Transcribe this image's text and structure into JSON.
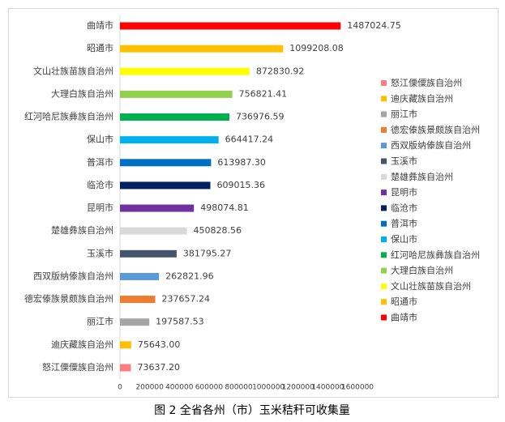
{
  "chart_data": {
    "type": "bar",
    "orientation": "horizontal",
    "caption": "图 2 全省各州（市）玉米秸秆可收集量",
    "categories": [
      "曲靖市",
      "昭通市",
      "文山壮族苗族自治州",
      "大理白族自治州",
      "红河哈尼族彝族自治州",
      "保山市",
      "普洱市",
      "临沧市",
      "昆明市",
      "楚雄彝族自治州",
      "玉溪市",
      "西双版纳傣族自治州",
      "德宏傣族景颇族自治州",
      "丽江市",
      "迪庆藏族自治州",
      "怒江傈僳族自治州"
    ],
    "values": [
      1487024.75,
      1099208.08,
      872830.92,
      756821.41,
      736976.59,
      664417.24,
      613987.3,
      609015.36,
      498074.81,
      450828.56,
      381795.27,
      262821.96,
      237657.24,
      197587.53,
      75643,
      73637.2
    ],
    "value_labels": [
      "1487024.75",
      "1099208.08",
      "872830.92",
      "756821.41",
      "736976.59",
      "664417.24",
      "613987.30",
      "609015.36",
      "498074.81",
      "450828.56",
      "381795.27",
      "262821.96",
      "237657.24",
      "197587.53",
      "75643.00",
      "73637.20"
    ],
    "colors": [
      "#ff0000",
      "#ffc000",
      "#ffff00",
      "#92d050",
      "#00b050",
      "#00b0f0",
      "#0070c0",
      "#002060",
      "#7030a0",
      "#d9d9d9",
      "#44546a",
      "#5b9bd5",
      "#ed7d31",
      "#a5a5a5",
      "#ffc000",
      "#ff7c80"
    ],
    "xlim": [
      0,
      1600000
    ],
    "xticks": [
      0,
      200000,
      400000,
      600000,
      800000,
      1000000,
      1200000,
      1400000,
      1600000
    ],
    "legend": "right",
    "legend_order": "reversed"
  }
}
